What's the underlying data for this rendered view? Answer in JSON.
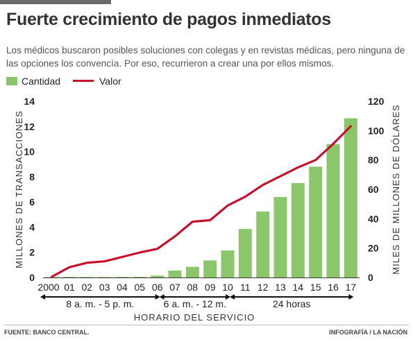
{
  "title": "Fuerte crecimiento de pagos inmediatos",
  "subtitle": "Los médicos buscaron posibles soluciones con colegas y en revistas médicas, pero ninguna de las opciones los convencía. Por eso, recurrieron a crear una por ellos mismos.",
  "legend": {
    "bar_label": "Cantidad",
    "line_label": "Valor"
  },
  "colors": {
    "bar": "#8cc66b",
    "line": "#c8102e",
    "text": "#222222"
  },
  "chart_data": {
    "type": "bar",
    "categories": [
      "2000",
      "01",
      "02",
      "03",
      "04",
      "05",
      "06",
      "07",
      "08",
      "09",
      "10",
      "11",
      "12",
      "13",
      "14",
      "15",
      "16",
      "17"
    ],
    "series": [
      {
        "name": "Cantidad",
        "type": "bar",
        "axis": "left",
        "values": [
          0.02,
          0.03,
          0.03,
          0.04,
          0.05,
          0.06,
          0.15,
          0.55,
          0.85,
          1.35,
          2.15,
          3.85,
          5.25,
          6.4,
          7.5,
          8.8,
          10.6,
          12.65
        ]
      },
      {
        "name": "Valor",
        "type": "line",
        "axis": "right",
        "values": [
          0.5,
          7,
          10,
          11,
          14,
          17,
          19.5,
          28,
          38,
          39,
          49,
          55,
          63,
          69,
          75,
          80,
          91,
          103
        ]
      }
    ],
    "ylabel": "MILLONES DE TRANSACCIONES",
    "ylim": [
      0,
      14
    ],
    "yticks": [
      0,
      2,
      4,
      6,
      8,
      10,
      12,
      14
    ],
    "y2label": "MILES DE MILLONES DE DÓLARES",
    "y2lim": [
      0,
      120
    ],
    "y2ticks": [
      0,
      20,
      40,
      60,
      80,
      100,
      120
    ],
    "xlabel": "HORARIO DEL SERVICIO",
    "grid": false,
    "legend_position": "top-left",
    "periods": [
      {
        "label": "8 a. m. - 5 p. m.",
        "start": 0,
        "end": 6
      },
      {
        "label": "6 a. m. - 12 m.",
        "start": 6,
        "end": 10
      },
      {
        "label": "24 horas",
        "start": 10,
        "end": 17
      }
    ]
  },
  "footer": {
    "source": "FUENTE: BANCO CENTRAL.",
    "credit": "INFOGRAFÍA / LA NACIÓN"
  }
}
